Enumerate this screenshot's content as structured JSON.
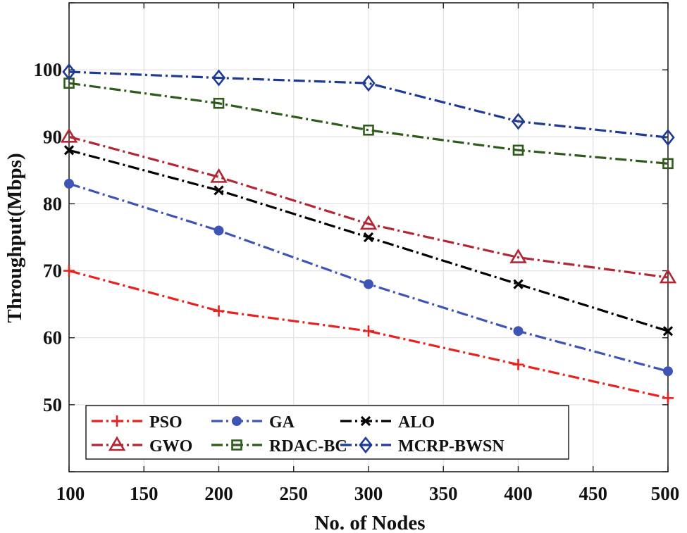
{
  "chart_data": {
    "type": "line",
    "title": "",
    "xlabel": "No. of Nodes",
    "ylabel": "Throughput(Mbps)",
    "xlim": [
      100,
      500
    ],
    "ylim": [
      40,
      110
    ],
    "xticks": [
      100,
      150,
      200,
      250,
      300,
      350,
      400,
      450,
      500
    ],
    "yticks": [
      50,
      60,
      70,
      80,
      90,
      100
    ],
    "grid": true,
    "legend_position": "bottom-left",
    "x": [
      100,
      200,
      300,
      400,
      500
    ],
    "series": [
      {
        "name": "PSO",
        "color": "#e8221f",
        "marker": "plus",
        "values": [
          70,
          64,
          61,
          56,
          51
        ]
      },
      {
        "name": "GA",
        "color": "#3f55b5",
        "marker": "circle",
        "values": [
          83,
          76,
          68,
          61,
          55
        ]
      },
      {
        "name": "ALO",
        "color": "#000000",
        "marker": "x",
        "values": [
          88,
          82,
          75,
          68,
          61
        ]
      },
      {
        "name": "GWO",
        "color": "#b22635",
        "marker": "triangle",
        "values": [
          90,
          84,
          77,
          72,
          69
        ]
      },
      {
        "name": "RDAC-BC",
        "color": "#2e5a1c",
        "marker": "square",
        "values": [
          98,
          95,
          91,
          88,
          86
        ]
      },
      {
        "name": "MCRP-BWSN",
        "color": "#1f3a93",
        "marker": "diamond",
        "values": [
          99.7,
          98.8,
          98,
          92.3,
          89.9
        ]
      }
    ]
  }
}
